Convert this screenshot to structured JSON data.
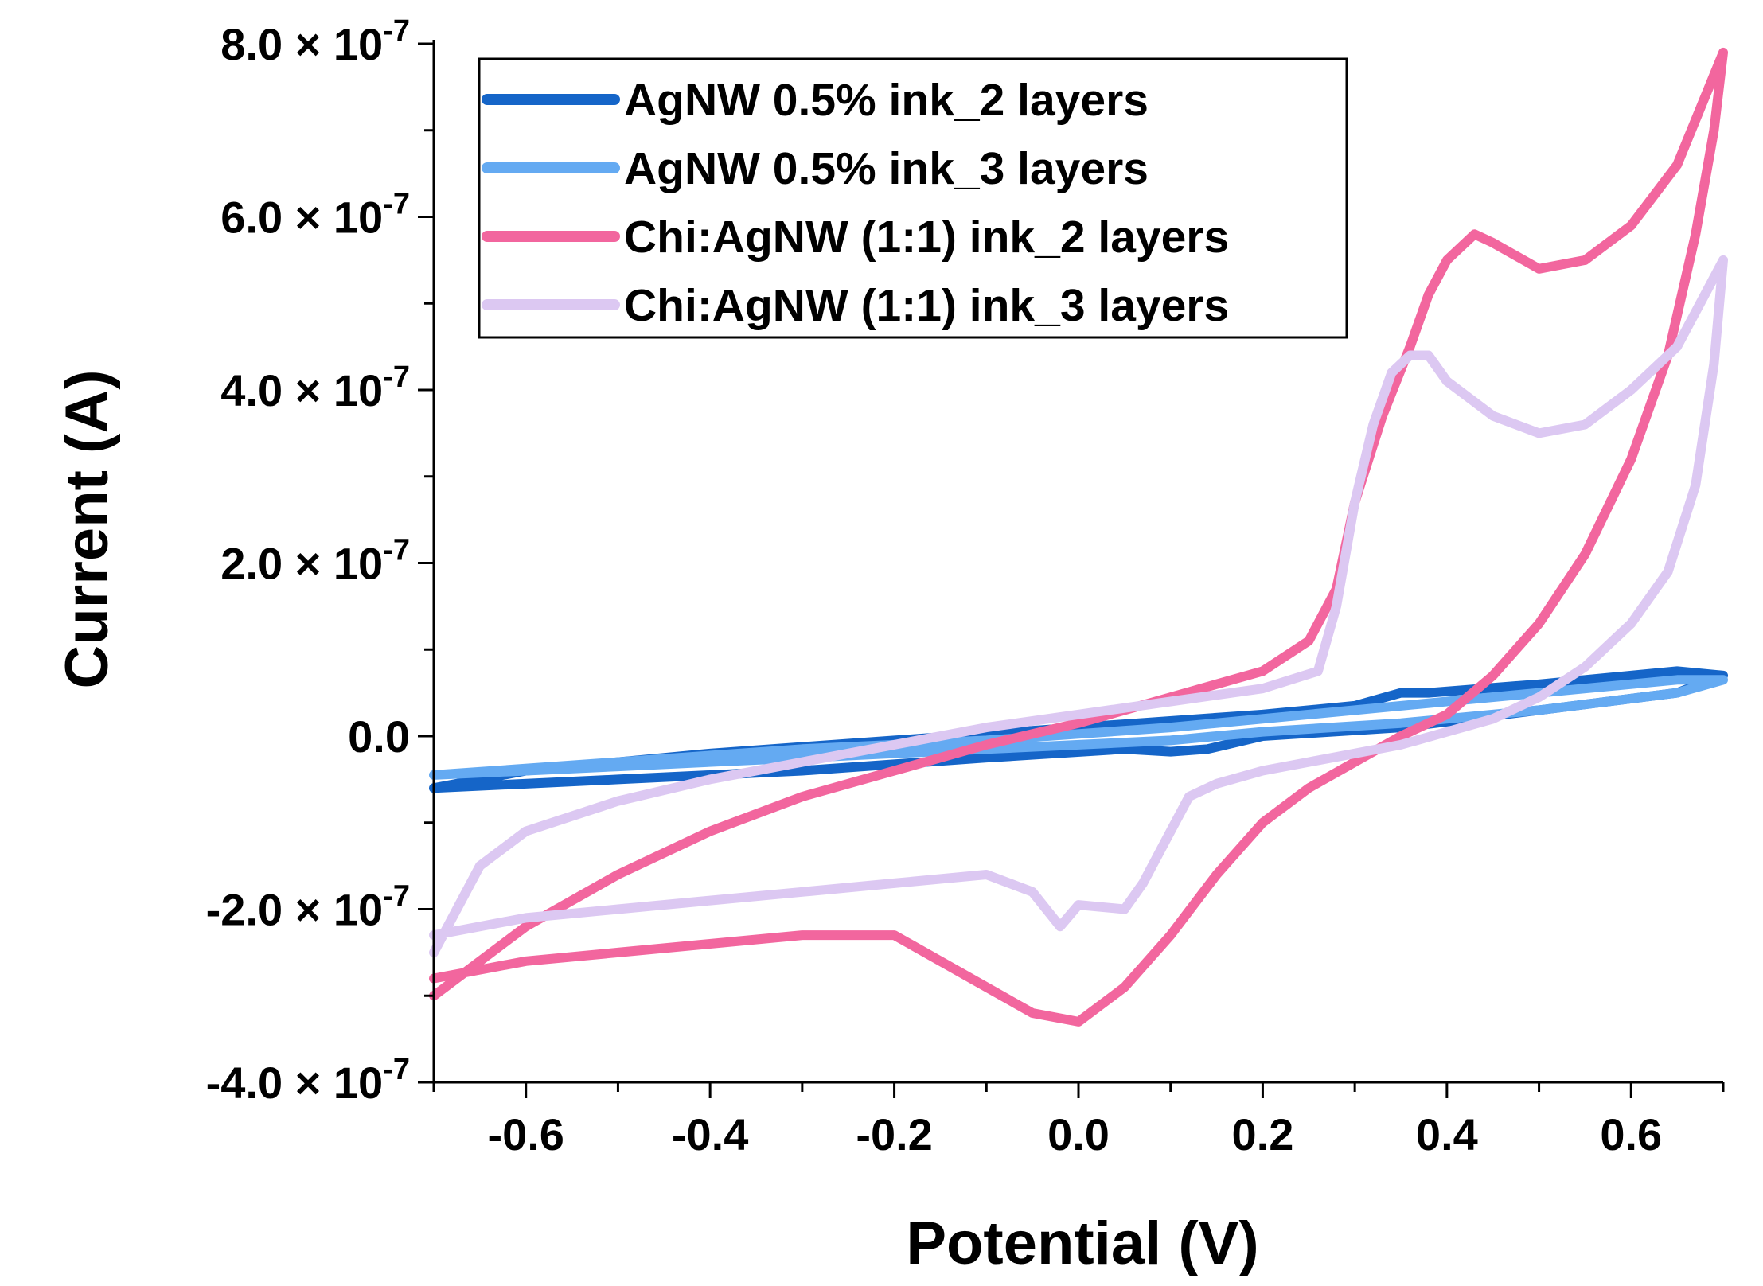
{
  "chart_data": {
    "type": "line",
    "title": "",
    "xlabel": "Potential (V)",
    "ylabel": "Current (A)",
    "xlim": [
      -0.7,
      0.7
    ],
    "ylim": [
      -4e-07,
      8e-07
    ],
    "x_ticks": [
      {
        "value": -0.6,
        "label": "-0.6"
      },
      {
        "value": -0.4,
        "label": "-0.4"
      },
      {
        "value": -0.2,
        "label": "-0.2"
      },
      {
        "value": 0.0,
        "label": "0.0"
      },
      {
        "value": 0.2,
        "label": "0.2"
      },
      {
        "value": 0.4,
        "label": "0.4"
      },
      {
        "value": 0.6,
        "label": "0.6"
      }
    ],
    "y_ticks": [
      {
        "value": -4e-07,
        "mantissa": "-4.0 × 10",
        "exponent": "-7"
      },
      {
        "value": -2e-07,
        "mantissa": "-2.0 × 10",
        "exponent": "-7"
      },
      {
        "value": 0.0,
        "mantissa": "0.0",
        "exponent": ""
      },
      {
        "value": 2e-07,
        "mantissa": "2.0 × 10",
        "exponent": "-7"
      },
      {
        "value": 4e-07,
        "mantissa": "4.0 × 10",
        "exponent": "-7"
      },
      {
        "value": 6e-07,
        "mantissa": "6.0 × 10",
        "exponent": "-7"
      },
      {
        "value": 8e-07,
        "mantissa": "8.0 × 10",
        "exponent": "-7"
      }
    ],
    "grid": false,
    "legend_position": "top-left",
    "series": [
      {
        "name": "AgNW 0.5% ink_2 layers",
        "color": "#1565c8",
        "x": [
          -0.7,
          -0.5,
          -0.3,
          -0.1,
          0.05,
          0.1,
          0.14,
          0.2,
          0.35,
          0.5,
          0.65,
          0.7,
          0.65,
          0.5,
          0.38,
          0.35,
          0.3,
          0.2,
          0.0,
          -0.2,
          -0.4,
          -0.6,
          -0.7
        ],
        "y": [
          -6e-08,
          -5e-08,
          -4e-08,
          -2.5e-08,
          -1.5e-08,
          -1.8e-08,
          -1.5e-08,
          0.0,
          1e-08,
          3e-08,
          5e-08,
          7e-08,
          7.5e-08,
          6e-08,
          5e-08,
          5e-08,
          3.5e-08,
          2.5e-08,
          1e-08,
          -5e-09,
          -2e-08,
          -4e-08,
          -6e-08
        ]
      },
      {
        "name": "AgNW 0.5% ink_3 layers",
        "color": "#64aaf2",
        "x": [
          -0.7,
          -0.5,
          -0.3,
          -0.1,
          0.1,
          0.2,
          0.35,
          0.5,
          0.65,
          0.7,
          0.65,
          0.5,
          0.3,
          0.1,
          -0.1,
          -0.3,
          -0.5,
          -0.7
        ],
        "y": [
          -4.5e-08,
          -3.5e-08,
          -2.5e-08,
          -1.5e-08,
          -5e-09,
          5e-09,
          1.5e-08,
          3e-08,
          5e-08,
          6.5e-08,
          6.5e-08,
          5e-08,
          3e-08,
          1e-08,
          -5e-09,
          -1.5e-08,
          -3e-08,
          -4.5e-08
        ]
      },
      {
        "name": "Chi:AgNW (1:1) ink_2 layers",
        "color": "#f2669e",
        "x": [
          -0.7,
          -0.65,
          -0.6,
          -0.5,
          -0.4,
          -0.3,
          -0.2,
          -0.1,
          0.0,
          0.1,
          0.2,
          0.25,
          0.28,
          0.3,
          0.33,
          0.36,
          0.38,
          0.4,
          0.43,
          0.45,
          0.5,
          0.55,
          0.6,
          0.65,
          0.7,
          0.69,
          0.67,
          0.64,
          0.6,
          0.55,
          0.5,
          0.45,
          0.4,
          0.35,
          0.3,
          0.25,
          0.2,
          0.15,
          0.1,
          0.05,
          0.0,
          -0.05,
          -0.1,
          -0.2,
          -0.3,
          -0.4,
          -0.5,
          -0.6,
          -0.65,
          -0.7
        ],
        "y": [
          -3e-07,
          -2.6e-07,
          -2.2e-07,
          -1.6e-07,
          -1.1e-07,
          -7e-08,
          -4e-08,
          -1e-08,
          1.5e-08,
          4.5e-08,
          7.5e-08,
          1.1e-07,
          1.7e-07,
          2.7e-07,
          3.7e-07,
          4.5e-07,
          5.1e-07,
          5.5e-07,
          5.8e-07,
          5.7e-07,
          5.4e-07,
          5.5e-07,
          5.9e-07,
          6.6e-07,
          7.9e-07,
          7e-07,
          5.8e-07,
          4.4e-07,
          3.2e-07,
          2.1e-07,
          1.3e-07,
          7e-08,
          2.5e-08,
          0.0,
          -3e-08,
          -6e-08,
          -1e-07,
          -1.6e-07,
          -2.3e-07,
          -2.9e-07,
          -3.3e-07,
          -3.2e-07,
          -2.9e-07,
          -2.3e-07,
          -2.3e-07,
          -2.4e-07,
          -2.5e-07,
          -2.6e-07,
          -2.7e-07,
          -2.8e-07
        ]
      },
      {
        "name": "Chi:AgNW (1:1) ink_3 layers",
        "color": "#dcc8f2",
        "x": [
          -0.7,
          -0.65,
          -0.6,
          -0.5,
          -0.4,
          -0.3,
          -0.2,
          -0.1,
          0.0,
          0.1,
          0.2,
          0.26,
          0.28,
          0.3,
          0.32,
          0.34,
          0.36,
          0.38,
          0.4,
          0.45,
          0.5,
          0.55,
          0.6,
          0.65,
          0.7,
          0.69,
          0.67,
          0.64,
          0.6,
          0.55,
          0.5,
          0.45,
          0.4,
          0.35,
          0.3,
          0.25,
          0.2,
          0.15,
          0.12,
          0.1,
          0.07,
          0.05,
          0.0,
          -0.02,
          -0.05,
          -0.1,
          -0.2,
          -0.3,
          -0.4,
          -0.5,
          -0.6,
          -0.7
        ],
        "y": [
          -2.5e-07,
          -1.5e-07,
          -1.1e-07,
          -7.5e-08,
          -5e-08,
          -3e-08,
          -1e-08,
          1e-08,
          2.5e-08,
          4e-08,
          5.5e-08,
          7.5e-08,
          1.5e-07,
          2.7e-07,
          3.6e-07,
          4.2e-07,
          4.4e-07,
          4.4e-07,
          4.1e-07,
          3.7e-07,
          3.5e-07,
          3.6e-07,
          4e-07,
          4.5e-07,
          5.5e-07,
          4.3e-07,
          2.9e-07,
          1.9e-07,
          1.3e-07,
          8e-08,
          4.5e-08,
          2e-08,
          5e-09,
          -1e-08,
          -2e-08,
          -3e-08,
          -4e-08,
          -5.5e-08,
          -7e-08,
          -1.1e-07,
          -1.7e-07,
          -2e-07,
          -1.95e-07,
          -2.2e-07,
          -1.8e-07,
          -1.6e-07,
          -1.7e-07,
          -1.8e-07,
          -1.9e-07,
          -2e-07,
          -2.1e-07,
          -2.3e-07
        ]
      }
    ]
  }
}
